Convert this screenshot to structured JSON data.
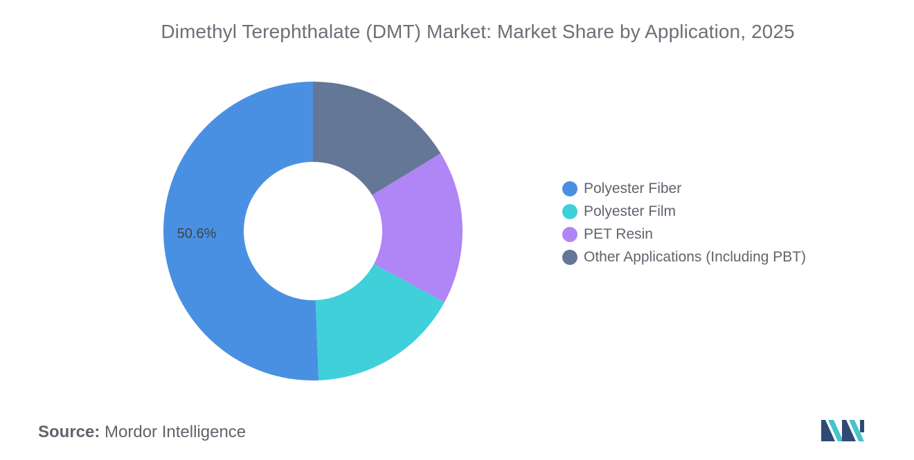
{
  "chart_data": {
    "type": "pie",
    "title": "Dimethyl Terephthalate (DMT) Market: Market Share by Application, 2025",
    "donut": true,
    "slices": [
      {
        "label": "Polyester Fiber",
        "value": 50.6,
        "color": "#4a90e2",
        "data_label": "50.6%"
      },
      {
        "label": "Polyester Film",
        "value": 16.5,
        "color": "#3fd0d9",
        "data_label": ""
      },
      {
        "label": "PET Resin",
        "value": 16.6,
        "color": "#b085f5",
        "data_label": ""
      },
      {
        "label": "Other Applications (Including PBT)",
        "value": 16.3,
        "color": "#657796",
        "data_label": ""
      }
    ],
    "legend_position": "right"
  },
  "source": {
    "key": "Source:",
    "value": "Mordor Intelligence"
  },
  "logo": {
    "name": "mordor-intelligence-logo",
    "colors": [
      "#2f4b74",
      "#46c3cc"
    ]
  }
}
